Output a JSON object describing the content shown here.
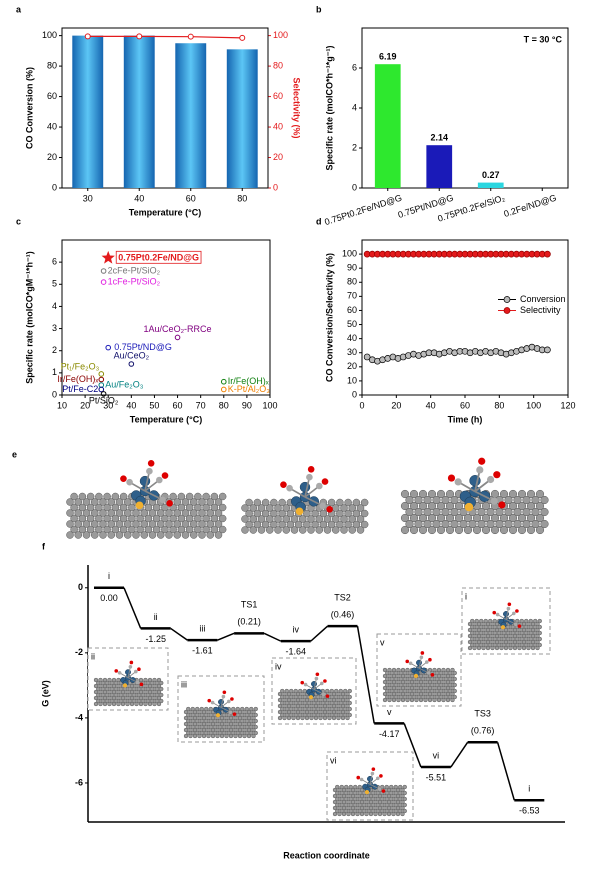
{
  "chart_data": [
    {
      "panel": "a",
      "type": "bar",
      "categories": [
        "30",
        "40",
        "60",
        "80"
      ],
      "series": [
        {
          "values": [
            100,
            100,
            95,
            91
          ],
          "color": "#2a97dd"
        },
        {
          "values": [
            99.5,
            99.5,
            99.3,
            98.5
          ],
          "color": "#e31a1c",
          "axis": "y2",
          "type": "line"
        }
      ],
      "ylim": [
        0,
        105
      ],
      "yticks": [
        0,
        20,
        40,
        60,
        80,
        100
      ],
      "y2lim": [
        0,
        105
      ],
      "y2ticks": [
        0,
        20,
        40,
        60,
        80,
        100
      ],
      "xlabel": "Temperature (°C)",
      "ylabel": "CO Conversion (%)",
      "y2label": "Selectivity (%)"
    },
    {
      "panel": "b",
      "type": "bar",
      "categories": [
        "0.75Pt0.2Fe/ND@G",
        "0.75Pt/ND@G",
        "0.75Pt0.2Fe/SiO₂",
        "0.2Fe/ND@G"
      ],
      "values": [
        6.19,
        2.14,
        0.27,
        0
      ],
      "value_labels": [
        "6.19",
        "2.14",
        "0.27",
        null
      ],
      "colors": [
        "#2ee82e",
        "#1a1ab8",
        "#2ad6e0",
        "#888888"
      ],
      "ylim": [
        0,
        8
      ],
      "yticks": [
        0,
        2,
        4,
        6
      ],
      "ylabel": "Specific rate (molCO*h⁻¹*g⁻¹)",
      "annotation": "T = 30 °C"
    },
    {
      "panel": "c",
      "type": "scatter",
      "xlim": [
        10,
        100
      ],
      "xticks": [
        10,
        20,
        30,
        40,
        50,
        60,
        70,
        80,
        90,
        100
      ],
      "ylim": [
        0,
        7
      ],
      "yticks": [
        0,
        1,
        2,
        3,
        4,
        5,
        6
      ],
      "xlabel": "Temperature (°C)",
      "ylabel": "Specific rate (molCO*gM⁻¹*h⁻¹)",
      "points": [
        {
          "label": "0.75Pt0.2Fe/ND@G",
          "x": 30,
          "y": 6.19,
          "color": "#e31a1c",
          "marker": "star"
        },
        {
          "label": "2cFe-Pt/SiO₂",
          "x": 28,
          "y": 5.6,
          "color": "#777777",
          "marker": "circle"
        },
        {
          "label": "1cFe-Pt/SiO₂",
          "x": 28,
          "y": 5.1,
          "color": "#e020e0",
          "marker": "circle"
        },
        {
          "label": "1Au/CeO₂-RRCe",
          "x": 60,
          "y": 2.6,
          "color": "#800080",
          "marker": "circle"
        },
        {
          "label": "0.75Pt/ND@G",
          "x": 30,
          "y": 2.14,
          "color": "#1a1ab8",
          "marker": "circle"
        },
        {
          "label": "Au/CeO₂",
          "x": 40,
          "y": 1.4,
          "color": "#10106a",
          "marker": "circle"
        },
        {
          "label": "Pt₁/Fe₂O₃",
          "x": 27,
          "y": 0.95,
          "color": "#8a8a00",
          "marker": "circle"
        },
        {
          "label": "Ir/Fe(OH)ₓ",
          "x": 27,
          "y": 0.7,
          "color": "#8b0000",
          "marker": "circle"
        },
        {
          "label": "Au/Fe₂O₃",
          "x": 27,
          "y": 0.45,
          "color": "#008080",
          "marker": "circle"
        },
        {
          "label": "Pt/Fe-C2",
          "x": 27,
          "y": 0.25,
          "color": "#000080",
          "marker": "circle"
        },
        {
          "label": "Pt/SiO₂",
          "x": 28,
          "y": 0.05,
          "color": "#000000",
          "marker": "circle"
        },
        {
          "label": "Ir/Fe(OH)ₓ",
          "x": 80,
          "y": 0.6,
          "color": "#108010",
          "marker": "circle"
        },
        {
          "label": "K-Pt/Al₂O₃",
          "x": 80,
          "y": 0.25,
          "color": "#f08000",
          "marker": "circle"
        }
      ]
    },
    {
      "panel": "d",
      "type": "line",
      "xlim": [
        0,
        120
      ],
      "xticks": [
        0,
        20,
        40,
        60,
        80,
        100,
        120
      ],
      "ylim": [
        0,
        110
      ],
      "yticks": [
        0,
        10,
        20,
        30,
        40,
        50,
        60,
        70,
        80,
        90,
        100
      ],
      "xlabel": "Time (h)",
      "ylabel": "CO Conversion/Selectivity (%)",
      "legend": "center right",
      "x": [
        3,
        6,
        9,
        12,
        15,
        18,
        21,
        24,
        27,
        30,
        33,
        36,
        39,
        42,
        45,
        48,
        51,
        54,
        57,
        60,
        63,
        66,
        69,
        72,
        75,
        78,
        81,
        84,
        87,
        90,
        93,
        96,
        99,
        102,
        105,
        108
      ],
      "series": [
        {
          "name": "Conversion",
          "color": "#000000",
          "values": [
            27,
            25,
            24,
            25,
            26,
            27,
            26,
            27,
            28,
            29,
            28,
            29,
            30,
            30,
            29,
            30,
            31,
            30,
            31,
            31,
            30,
            31,
            30,
            31,
            30,
            31,
            30,
            29,
            30,
            31,
            32,
            33,
            34,
            33,
            32,
            32
          ]
        },
        {
          "name": "Selectivity",
          "color": "#e31a1c",
          "values": [
            100,
            100,
            100,
            100,
            100,
            100,
            100,
            100,
            100,
            100,
            100,
            100,
            100,
            100,
            100,
            100,
            100,
            100,
            100,
            100,
            100,
            100,
            100,
            100,
            100,
            100,
            100,
            100,
            100,
            100,
            100,
            100,
            100,
            100,
            100,
            100
          ]
        }
      ]
    },
    {
      "panel": "e",
      "type": "structures"
    },
    {
      "panel": "f",
      "type": "energy",
      "ylim": [
        -7.2,
        0.7
      ],
      "yticks": [
        0,
        -2,
        -4,
        -6
      ],
      "ylabel": "G (eV)",
      "xlabel": "Reaction coordinate",
      "levels": [
        {
          "name": "i",
          "G": 0,
          "label": "0.00"
        },
        {
          "name": "ii",
          "G": -1.25,
          "label": "-1.25"
        },
        {
          "name": "iii",
          "G": -1.61,
          "label": "-1.61"
        },
        {
          "name": "TS1",
          "G": -1.4,
          "label": "(0.21)"
        },
        {
          "name": "iv",
          "G": -1.64,
          "label": "-1.64"
        },
        {
          "name": "TS2",
          "G": -1.18,
          "label": "(0.46)"
        },
        {
          "name": "v",
          "G": -4.17,
          "label": "-4.17"
        },
        {
          "name": "vi",
          "G": -5.51,
          "label": "-5.51"
        },
        {
          "name": "TS3",
          "G": -4.75,
          "label": "(0.76)"
        },
        {
          "name": "i",
          "G": -6.53,
          "label": "-6.53"
        }
      ],
      "insets": [
        "ii",
        "iii",
        "iv",
        "v",
        "vi",
        "i"
      ]
    }
  ]
}
